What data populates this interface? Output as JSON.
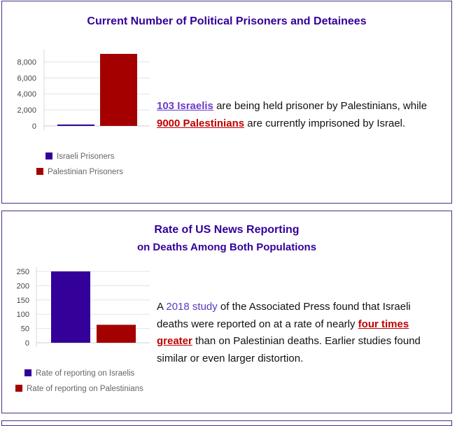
{
  "colors": {
    "israeli": "#330099",
    "palestinian": "#a40000",
    "title": "#330099",
    "border": "#4b2d83"
  },
  "panel1": {
    "title": "Current Number of Political Prisoners and Detainees",
    "text": {
      "link1": "103 Israelis",
      "part1": " are being held prisoner by Palestinians, while ",
      "link2": "9000 Palestinians",
      "part2": " are currently imprisoned by Israel."
    },
    "legend": [
      "Israeli Prisoners",
      "Palestinian Prisoners"
    ]
  },
  "panel2": {
    "title_line1": "Rate of US News Reporting",
    "title_line2": "on Deaths Among Both Populations",
    "text": {
      "part1": "A ",
      "link1": "2018 study",
      "part2": " of the Associated Press found that Israeli deaths were reported on at a rate of nearly ",
      "link2": "four times greater",
      "part3": " than on Palestinian deaths. Earlier studies found similar or even larger distortion."
    },
    "legend": [
      "Rate of reporting on Israelis",
      "Rate of reporting on Palestinians"
    ]
  },
  "chart_data": [
    {
      "type": "bar",
      "categories": [
        "Israeli Prisoners",
        "Palestinian Prisoners"
      ],
      "values": [
        103,
        9000
      ],
      "ylim": [
        0,
        9000
      ],
      "yticks": [
        "0",
        "2,000",
        "4,000",
        "6,000",
        "8,000"
      ],
      "ytick_values": [
        0,
        2000,
        4000,
        6000,
        8000
      ],
      "grid": true,
      "legend": "bottom"
    },
    {
      "type": "bar",
      "categories": [
        "Rate of reporting on Israelis",
        "Rate of reporting on Palestinians"
      ],
      "values": [
        250,
        63
      ],
      "ylim": [
        0,
        250
      ],
      "yticks": [
        "0",
        "50",
        "100",
        "150",
        "200",
        "250"
      ],
      "ytick_values": [
        0,
        50,
        100,
        150,
        200,
        250
      ],
      "grid": true,
      "legend": "bottom"
    }
  ]
}
